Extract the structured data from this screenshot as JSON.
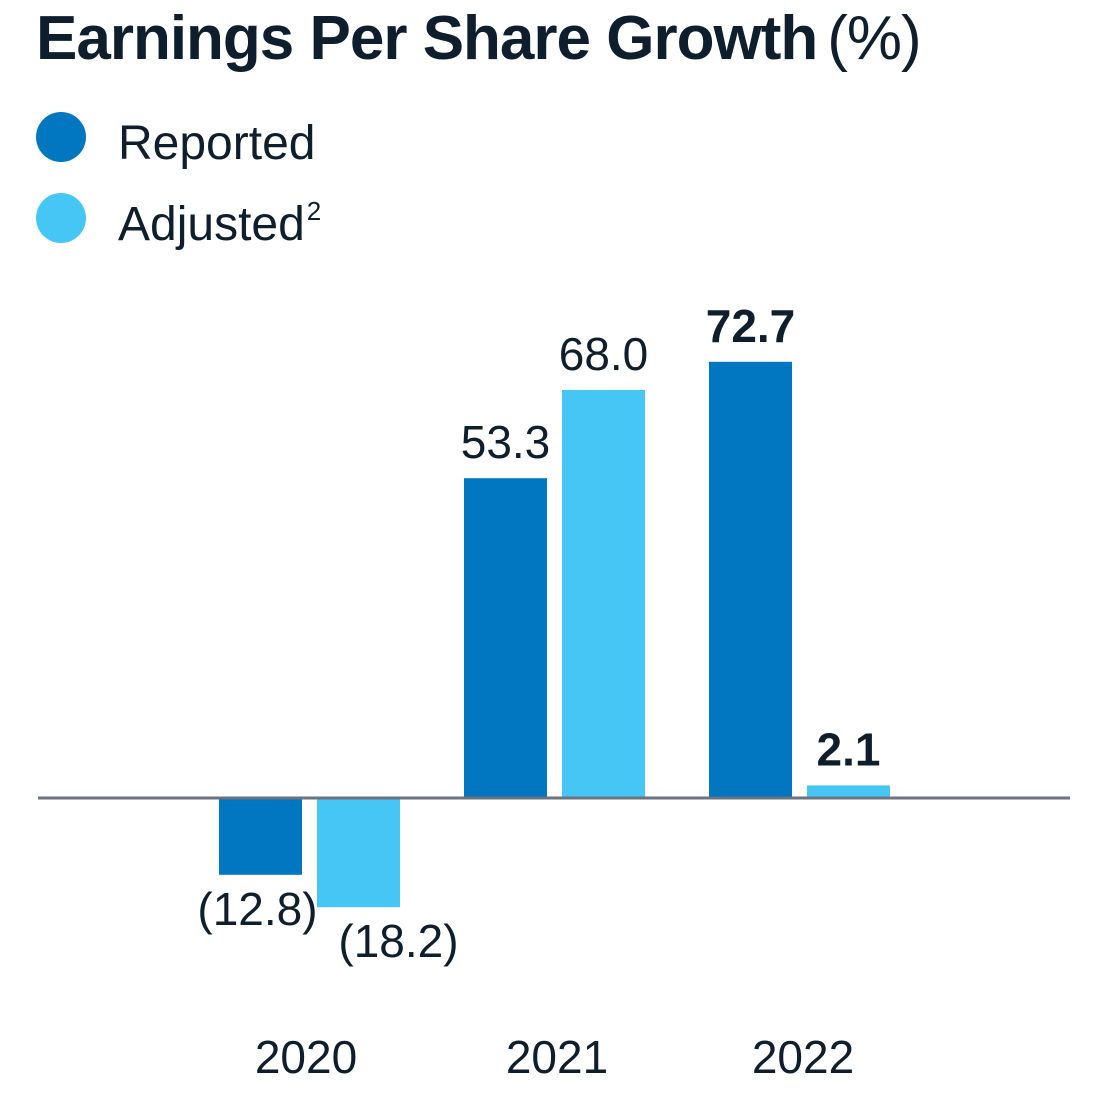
{
  "title": "Earnings Per Share Growth",
  "title_unit": "(%)",
  "legend": [
    {
      "label": "Reported",
      "sup": "",
      "color": "#0077c0"
    },
    {
      "label": "Adjusted",
      "sup": "2",
      "color": "#45c6f5"
    }
  ],
  "chart_data": {
    "type": "bar",
    "title": "Earnings Per Share Growth (%)",
    "categories": [
      "2020",
      "2021",
      "2022"
    ],
    "series": [
      {
        "name": "Reported",
        "color": "#0077c0",
        "values": [
          -12.8,
          53.3,
          72.7
        ]
      },
      {
        "name": "Adjusted",
        "color": "#45c6f5",
        "values": [
          -18.2,
          68.0,
          2.1
        ]
      }
    ],
    "data_labels": [
      [
        "(12.8)",
        "53.3",
        "72.7"
      ],
      [
        "(18.2)",
        "68.0",
        "2.1"
      ]
    ],
    "bold_labels": [
      [
        false,
        false,
        true
      ],
      [
        false,
        false,
        true
      ]
    ],
    "xlabel": "",
    "ylabel": "",
    "grid": false,
    "legend_position": "top-left",
    "zero_line_color": "#6b7280",
    "text_color": "#0f1e2d"
  }
}
